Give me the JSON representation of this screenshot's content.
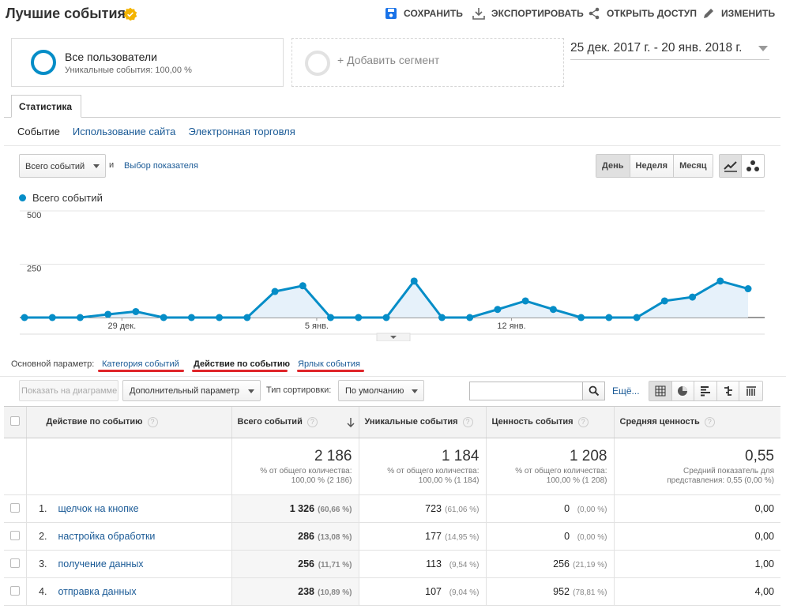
{
  "header": {
    "title": "Лучшие события",
    "save": "СОХРАНИТЬ",
    "export": "ЭКСПОРТИРОВАТЬ",
    "share": "ОТКРЫТЬ ДОСТУП",
    "edit": "ИЗМЕНИТЬ"
  },
  "segments": {
    "active_title": "Все пользователи",
    "active_sub": "Уникальные события: 100,00 %",
    "add_label": "+ Добавить сегмент"
  },
  "date_range": "25 дек. 2017 г. - 20 янв. 2018 г.",
  "tabs": {
    "stats": "Статистика"
  },
  "subtabs": [
    "Событие",
    "Использование сайта",
    "Электронная торговля"
  ],
  "chart_controls": {
    "metric": "Всего событий",
    "and": "и",
    "pick_metric": "Выбор показателя",
    "granularity": [
      "День",
      "Неделя",
      "Месяц"
    ]
  },
  "chart_data": {
    "type": "area",
    "series": [
      {
        "name": "Всего событий",
        "color": "#058dc7",
        "values": [
          0,
          0,
          0,
          15,
          28,
          0,
          0,
          0,
          0,
          122,
          149,
          0,
          0,
          0,
          171,
          0,
          0,
          38,
          78,
          38,
          0,
          0,
          0,
          78,
          96,
          171,
          135
        ]
      }
    ],
    "x_tick_labels": [
      {
        "index": 3.5,
        "label": "29 дек."
      },
      {
        "index": 10.5,
        "label": "5 янв."
      },
      {
        "index": 17.5,
        "label": "12 янв."
      }
    ],
    "y_ticks": [
      250,
      500
    ],
    "ylim": [
      0,
      500
    ]
  },
  "dimensions": {
    "label": "Основной параметр:",
    "items": [
      "Категория событий",
      "Действие по событию",
      "Ярлык события"
    ]
  },
  "toolbar": {
    "plot": "Показать на диаграмме",
    "secondary": "Дополнительный параметр",
    "sort_label": "Тип сортировки:",
    "sort_value": "По умолчанию",
    "more": "Ещё..."
  },
  "table": {
    "columns": [
      "Действие по событию",
      "Всего событий",
      "Уникальные события",
      "Ценность события",
      "Средняя ценность"
    ],
    "totals": [
      {
        "value": "2 186",
        "sub1": "% от общего количества:",
        "sub2": "100,00 % (2 186)"
      },
      {
        "value": "1 184",
        "sub1": "% от общего количества:",
        "sub2": "100,00 % (1 184)"
      },
      {
        "value": "1 208",
        "sub1": "% от общего количества:",
        "sub2": "100,00 % (1 208)"
      },
      {
        "value": "0,55",
        "sub1": "Средний показатель для",
        "sub2": "представления: 0,55 (0,00 %)"
      }
    ],
    "rows": [
      {
        "rank": "1.",
        "name": "щелчок на кнопке",
        "total": "1 326",
        "total_pct": "(60,66 %)",
        "uniq": "723",
        "uniq_pct": "(61,06 %)",
        "val": "0",
        "val_pct": "(0,00 %)",
        "avg": "0,00"
      },
      {
        "rank": "2.",
        "name": "настройка обработки",
        "total": "286",
        "total_pct": "(13,08 %)",
        "uniq": "177",
        "uniq_pct": "(14,95 %)",
        "val": "0",
        "val_pct": "(0,00 %)",
        "avg": "0,00"
      },
      {
        "rank": "3.",
        "name": "получение данных",
        "total": "256",
        "total_pct": "(11,71 %)",
        "uniq": "113",
        "uniq_pct": "(9,54 %)",
        "val": "256",
        "val_pct": "(21,19 %)",
        "avg": "1,00"
      },
      {
        "rank": "4.",
        "name": "отправка данных",
        "total": "238",
        "total_pct": "(10,89 %)",
        "uniq": "107",
        "uniq_pct": "(9,04 %)",
        "val": "952",
        "val_pct": "(78,81 %)",
        "avg": "4,00"
      }
    ]
  }
}
